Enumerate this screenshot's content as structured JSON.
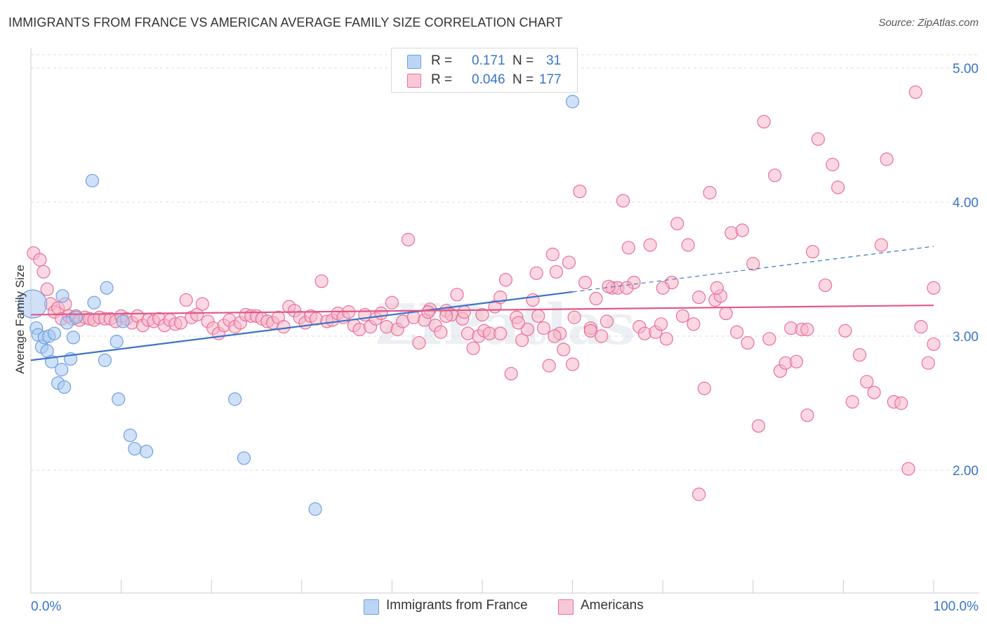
{
  "title": "IMMIGRANTS FROM FRANCE VS AMERICAN AVERAGE FAMILY SIZE CORRELATION CHART",
  "source": "Source: ZipAtlas.com",
  "watermark": "ZIPatlas",
  "legend_top": {
    "rows": [
      {
        "r_label": "R =",
        "r_value": "0.171",
        "n_label": "N =",
        "n_value": "31",
        "color": "#a9c8f0"
      },
      {
        "r_label": "R =",
        "r_value": "0.046",
        "n_label": "N =",
        "n_value": "177",
        "color": "#f6b6c8"
      }
    ]
  },
  "legend_bottom": [
    {
      "label": "Immigrants from France",
      "color": "#a9c8f0"
    },
    {
      "label": "Americans",
      "color": "#f6b6c8"
    }
  ],
  "chart_data": {
    "type": "scatter",
    "title": "IMMIGRANTS FROM FRANCE VS AMERICAN AVERAGE FAMILY SIZE CORRELATION CHART",
    "xlabel": "",
    "ylabel": "Average Family Size",
    "xlim": [
      0,
      100
    ],
    "ylim": [
      1.0,
      5.1
    ],
    "x_tick_labels": [
      "0.0%",
      "100.0%"
    ],
    "y_ticks": [
      2.0,
      3.0,
      4.0,
      5.0
    ],
    "y_tick_labels": [
      "2.00",
      "3.00",
      "4.00",
      "5.00"
    ],
    "grid": true,
    "legend": "bottom",
    "series": [
      {
        "name": "Immigrants from France",
        "color": "#6fa0e0",
        "fill": "#a9c8f0",
        "trend": {
          "x0": 0,
          "y0": 2.82,
          "x1": 60,
          "y1": 3.33
        },
        "points": [
          [
            0.2,
            3.24
          ],
          [
            0.6,
            3.06
          ],
          [
            0.8,
            3.01
          ],
          [
            1.2,
            2.92
          ],
          [
            1.5,
            2.99
          ],
          [
            1.8,
            2.89
          ],
          [
            2.0,
            3.0
          ],
          [
            2.3,
            2.81
          ],
          [
            2.6,
            3.02
          ],
          [
            3.0,
            2.65
          ],
          [
            3.4,
            2.75
          ],
          [
            3.5,
            3.3
          ],
          [
            3.7,
            2.62
          ],
          [
            4.0,
            3.1
          ],
          [
            4.4,
            2.83
          ],
          [
            4.7,
            2.99
          ],
          [
            5.0,
            3.14
          ],
          [
            6.8,
            4.16
          ],
          [
            7.0,
            3.25
          ],
          [
            8.2,
            2.82
          ],
          [
            8.4,
            3.36
          ],
          [
            9.5,
            2.96
          ],
          [
            9.7,
            2.53
          ],
          [
            10.2,
            3.11
          ],
          [
            11.0,
            2.26
          ],
          [
            11.5,
            2.16
          ],
          [
            12.8,
            2.14
          ],
          [
            22.6,
            2.53
          ],
          [
            23.6,
            2.09
          ],
          [
            31.5,
            1.71
          ],
          [
            60.0,
            4.75
          ]
        ]
      },
      {
        "name": "Americans",
        "color": "#e9709b",
        "fill": "#f6b6c8",
        "trend": {
          "x0": 0,
          "y0": 3.16,
          "x1": 100,
          "y1": 3.23
        },
        "points": [
          [
            0.3,
            3.62
          ],
          [
            1.0,
            3.57
          ],
          [
            1.4,
            3.48
          ],
          [
            1.8,
            3.35
          ],
          [
            2.2,
            3.24
          ],
          [
            2.6,
            3.18
          ],
          [
            3.0,
            3.21
          ],
          [
            3.4,
            3.13
          ],
          [
            3.8,
            3.24
          ],
          [
            4.2,
            3.15
          ],
          [
            4.6,
            3.13
          ],
          [
            5.0,
            3.15
          ],
          [
            5.4,
            3.12
          ],
          [
            6.0,
            3.14
          ],
          [
            6.5,
            3.13
          ],
          [
            7.0,
            3.12
          ],
          [
            7.6,
            3.14
          ],
          [
            8.2,
            3.13
          ],
          [
            8.8,
            3.13
          ],
          [
            9.4,
            3.11
          ],
          [
            10.0,
            3.15
          ],
          [
            10.6,
            3.13
          ],
          [
            11.2,
            3.1
          ],
          [
            11.8,
            3.15
          ],
          [
            12.4,
            3.08
          ],
          [
            13.0,
            3.12
          ],
          [
            13.6,
            3.11
          ],
          [
            14.2,
            3.13
          ],
          [
            14.8,
            3.08
          ],
          [
            15.4,
            3.12
          ],
          [
            16.0,
            3.09
          ],
          [
            16.6,
            3.1
          ],
          [
            17.2,
            3.27
          ],
          [
            17.8,
            3.14
          ],
          [
            18.4,
            3.16
          ],
          [
            19.0,
            3.24
          ],
          [
            19.6,
            3.11
          ],
          [
            20.2,
            3.06
          ],
          [
            20.8,
            3.02
          ],
          [
            21.4,
            3.08
          ],
          [
            22.0,
            3.12
          ],
          [
            22.6,
            3.07
          ],
          [
            23.2,
            3.1
          ],
          [
            23.8,
            3.16
          ],
          [
            24.4,
            3.15
          ],
          [
            25.0,
            3.15
          ],
          [
            25.6,
            3.13
          ],
          [
            26.2,
            3.11
          ],
          [
            26.8,
            3.1
          ],
          [
            27.4,
            3.14
          ],
          [
            28.0,
            3.07
          ],
          [
            28.6,
            3.22
          ],
          [
            29.2,
            3.19
          ],
          [
            29.8,
            3.14
          ],
          [
            30.4,
            3.1
          ],
          [
            31.0,
            3.15
          ],
          [
            31.6,
            3.13
          ],
          [
            32.2,
            3.41
          ],
          [
            32.8,
            3.11
          ],
          [
            33.4,
            3.12
          ],
          [
            34.0,
            3.17
          ],
          [
            34.6,
            3.14
          ],
          [
            35.2,
            3.18
          ],
          [
            35.8,
            3.08
          ],
          [
            36.4,
            3.05
          ],
          [
            37.0,
            3.16
          ],
          [
            37.6,
            3.07
          ],
          [
            38.2,
            3.13
          ],
          [
            38.8,
            3.17
          ],
          [
            39.4,
            3.07
          ],
          [
            40.0,
            3.25
          ],
          [
            40.6,
            3.05
          ],
          [
            41.2,
            3.11
          ],
          [
            41.8,
            3.72
          ],
          [
            42.4,
            3.14
          ],
          [
            43.0,
            2.95
          ],
          [
            43.6,
            3.12
          ],
          [
            44.2,
            3.2
          ],
          [
            44.8,
            3.08
          ],
          [
            45.4,
            3.03
          ],
          [
            46.0,
            3.19
          ],
          [
            46.6,
            3.16
          ],
          [
            47.2,
            3.31
          ],
          [
            47.8,
            3.13
          ],
          [
            48.4,
            3.02
          ],
          [
            49.0,
            2.91
          ],
          [
            49.6,
            3.0
          ],
          [
            50.2,
            3.04
          ],
          [
            50.8,
            3.02
          ],
          [
            51.4,
            3.22
          ],
          [
            52.0,
            3.29
          ],
          [
            52.6,
            3.42
          ],
          [
            53.2,
            2.72
          ],
          [
            53.8,
            3.14
          ],
          [
            54.4,
            2.97
          ],
          [
            55.0,
            3.05
          ],
          [
            55.6,
            3.27
          ],
          [
            56.2,
            3.15
          ],
          [
            56.8,
            3.06
          ],
          [
            57.4,
            2.78
          ],
          [
            57.8,
            3.61
          ],
          [
            58.2,
            3.48
          ],
          [
            58.6,
            3.02
          ],
          [
            59.0,
            2.9
          ],
          [
            59.6,
            3.55
          ],
          [
            60.2,
            3.14
          ],
          [
            60.8,
            4.08
          ],
          [
            61.4,
            3.4
          ],
          [
            62.0,
            3.06
          ],
          [
            62.6,
            3.28
          ],
          [
            63.2,
            3.0
          ],
          [
            63.8,
            3.11
          ],
          [
            64.4,
            3.36
          ],
          [
            65.0,
            3.36
          ],
          [
            65.6,
            4.01
          ],
          [
            66.2,
            3.66
          ],
          [
            66.8,
            3.4
          ],
          [
            67.4,
            3.07
          ],
          [
            68.0,
            3.02
          ],
          [
            68.6,
            3.68
          ],
          [
            69.2,
            3.03
          ],
          [
            69.8,
            3.09
          ],
          [
            70.4,
            2.98
          ],
          [
            71.0,
            3.4
          ],
          [
            71.6,
            3.84
          ],
          [
            72.2,
            3.15
          ],
          [
            72.8,
            3.68
          ],
          [
            73.4,
            3.09
          ],
          [
            74.0,
            3.29
          ],
          [
            74.6,
            2.61
          ],
          [
            75.2,
            4.07
          ],
          [
            75.8,
            3.27
          ],
          [
            76.4,
            3.3
          ],
          [
            77.0,
            3.17
          ],
          [
            77.6,
            3.77
          ],
          [
            78.2,
            3.03
          ],
          [
            78.8,
            3.79
          ],
          [
            79.4,
            2.95
          ],
          [
            80.0,
            3.54
          ],
          [
            80.6,
            2.33
          ],
          [
            81.2,
            4.6
          ],
          [
            81.8,
            2.98
          ],
          [
            82.4,
            4.2
          ],
          [
            83.0,
            2.74
          ],
          [
            83.6,
            2.8
          ],
          [
            84.2,
            3.06
          ],
          [
            84.8,
            2.81
          ],
          [
            85.4,
            3.05
          ],
          [
            86.0,
            2.41
          ],
          [
            86.6,
            3.63
          ],
          [
            87.2,
            4.47
          ],
          [
            88.0,
            3.38
          ],
          [
            88.8,
            4.28
          ],
          [
            89.4,
            4.11
          ],
          [
            90.2,
            3.04
          ],
          [
            91.0,
            2.51
          ],
          [
            91.8,
            2.86
          ],
          [
            92.6,
            2.66
          ],
          [
            93.4,
            2.58
          ],
          [
            94.2,
            3.68
          ],
          [
            94.8,
            4.32
          ],
          [
            95.6,
            2.51
          ],
          [
            96.4,
            2.5
          ],
          [
            97.2,
            2.01
          ],
          [
            98.0,
            4.82
          ],
          [
            98.6,
            3.07
          ],
          [
            99.4,
            2.8
          ],
          [
            100.0,
            2.94
          ],
          [
            100.0,
            3.36
          ],
          [
            60.0,
            2.79
          ],
          [
            74.0,
            1.82
          ],
          [
            56.0,
            3.47
          ],
          [
            70.0,
            3.36
          ],
          [
            86.0,
            3.05
          ],
          [
            46.0,
            3.15
          ],
          [
            66.0,
            3.36
          ],
          [
            44.0,
            3.18
          ],
          [
            54.0,
            3.1
          ],
          [
            76.0,
            3.36
          ],
          [
            64.0,
            3.37
          ],
          [
            52.0,
            3.02
          ],
          [
            58.0,
            3.0
          ],
          [
            48.0,
            3.18
          ],
          [
            50.0,
            3.16
          ],
          [
            62.0,
            3.04
          ]
        ]
      }
    ]
  }
}
